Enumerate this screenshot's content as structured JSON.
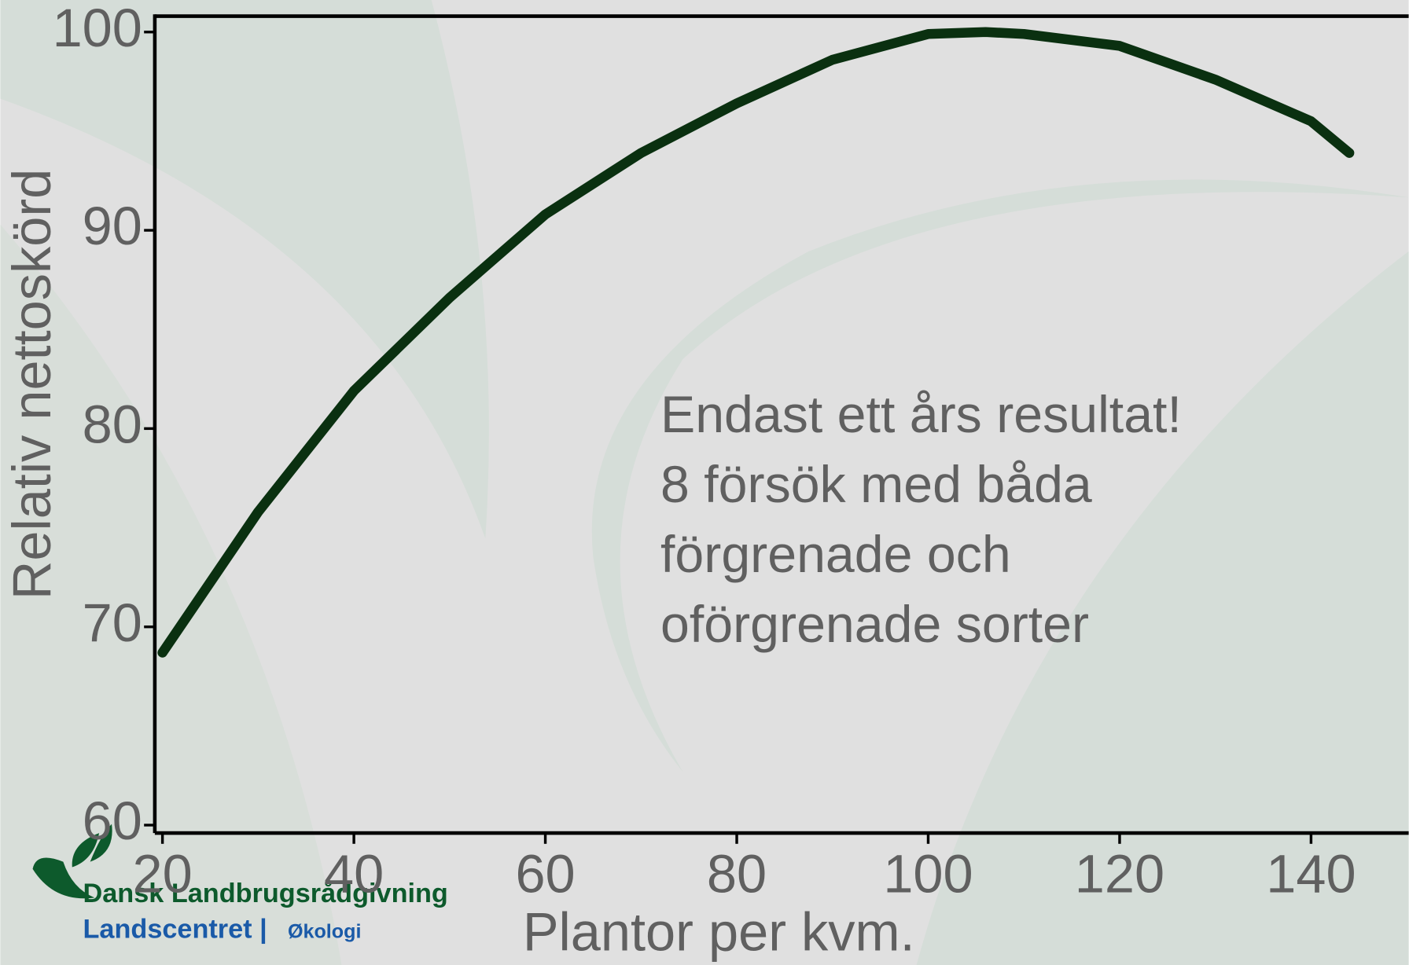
{
  "chart_data": {
    "type": "line",
    "x_label": "Plantor per kvm.",
    "y_label": "Relativ nettoskörd",
    "annotation": [
      "Endast ett års resultat!",
      "8 försök med båda",
      "förgrenade och",
      "oförgrenade sorter"
    ],
    "logo": {
      "line1": "Dansk Landbrugsrådgivning",
      "line2a": "Landscentret |",
      "line2b": "Økologi"
    },
    "x": [
      20,
      30,
      40,
      50,
      60,
      70,
      80,
      90,
      100,
      106,
      110,
      120,
      130,
      140,
      144
    ],
    "series": [
      {
        "color": "#0a3010",
        "values": [
          68.7,
          75.8,
          81.9,
          86.6,
          90.8,
          93.9,
          96.4,
          98.6,
          99.9,
          100,
          99.9,
          99.3,
          97.6,
          95.5,
          93.9
        ]
      }
    ],
    "xlim": [
      19.2,
      150.2
    ],
    "ylim": [
      59.6,
      100.8
    ],
    "xticks": [
      20,
      40,
      60,
      80,
      100,
      120,
      140
    ],
    "yticks": [
      60,
      70,
      80,
      90,
      100
    ]
  }
}
